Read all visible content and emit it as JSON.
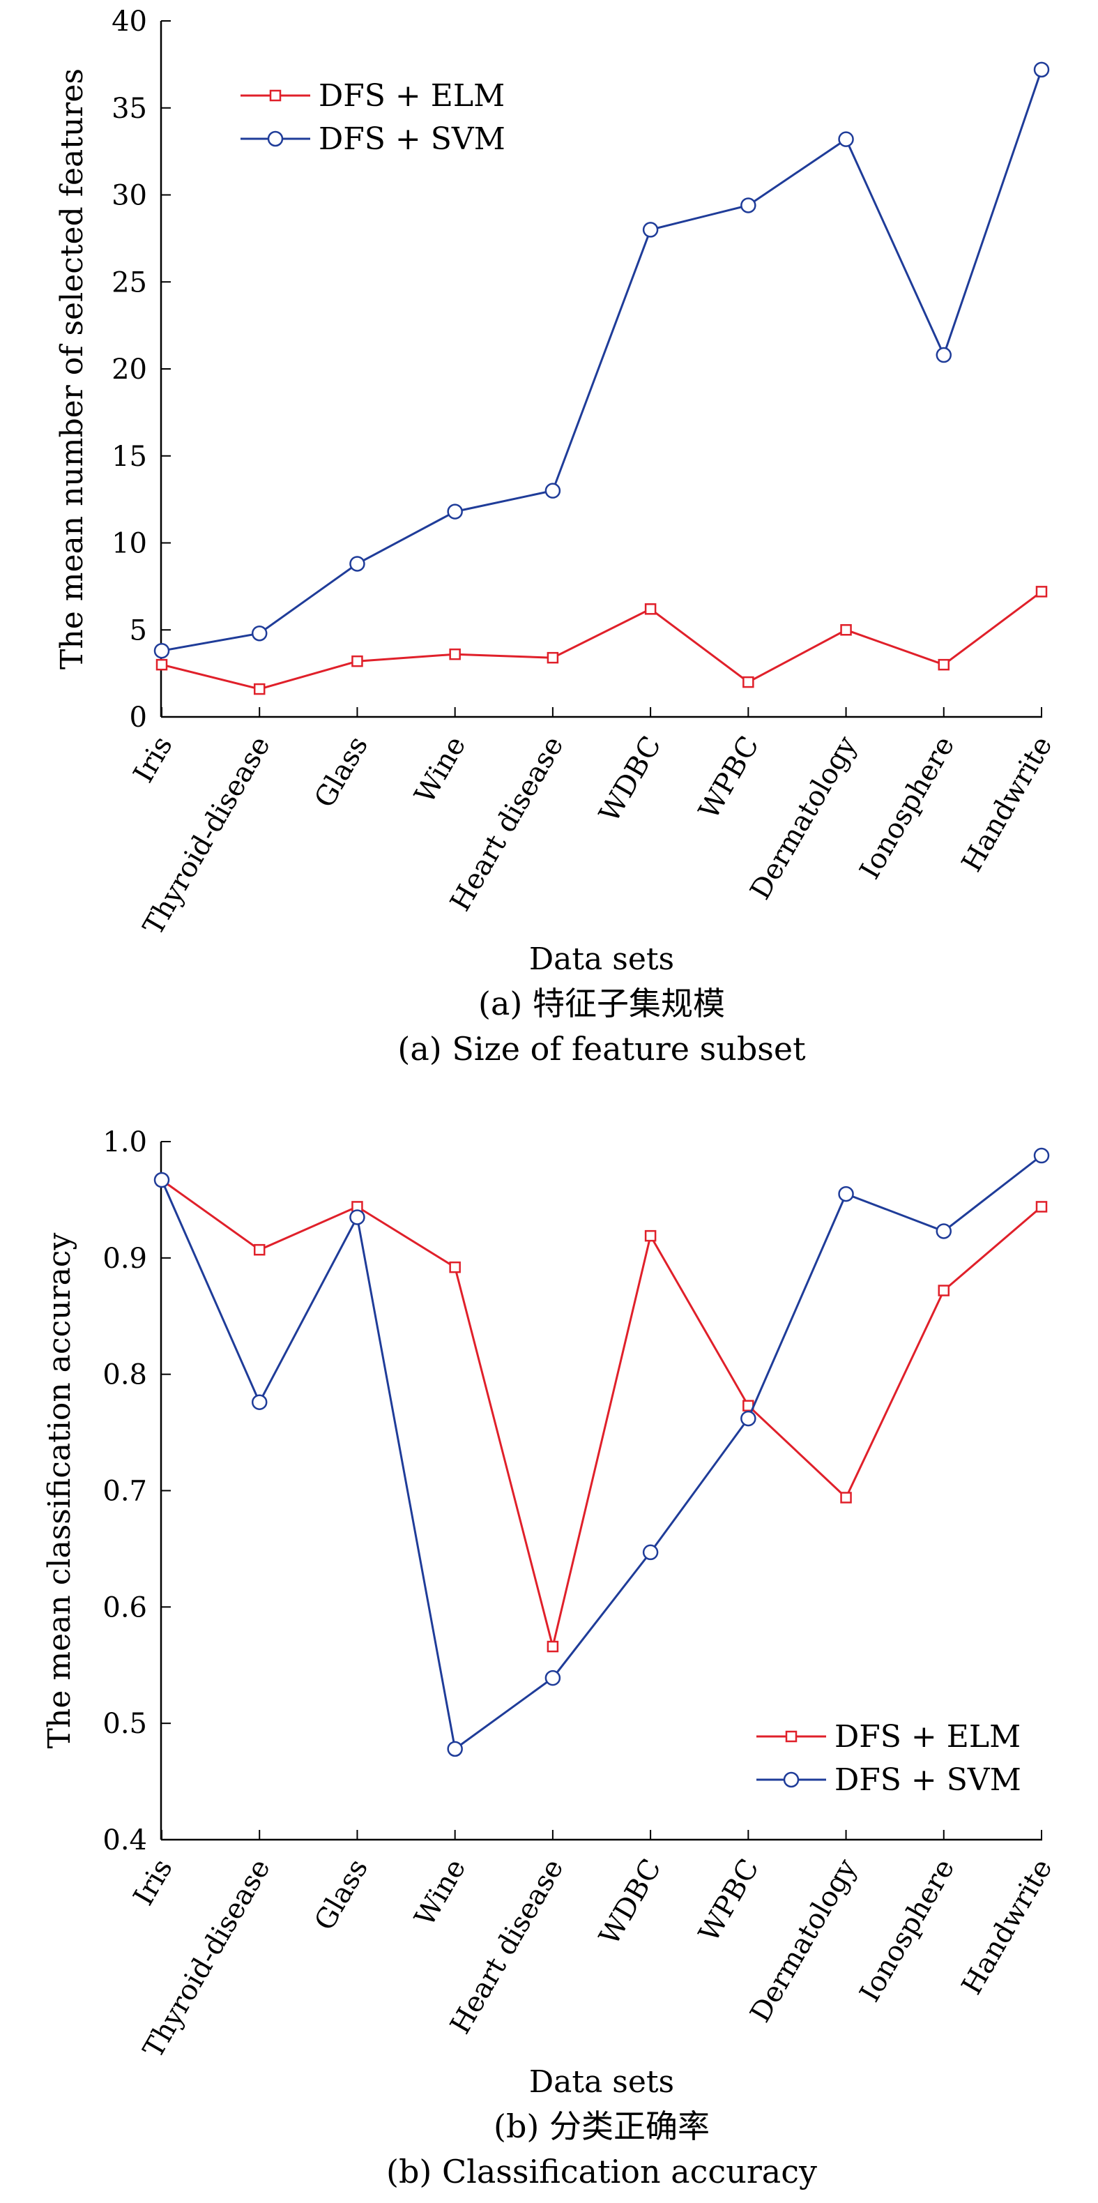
{
  "chart_data": [
    {
      "type": "line",
      "categories": [
        "Iris",
        "Thyroid-disease",
        "Glass",
        "Wine",
        "Heart disease",
        "WDBC",
        "WPBC",
        "Dermatology",
        "Ionosphere",
        "Handwrite"
      ],
      "series": [
        {
          "name": "DFS + ELM",
          "values": [
            3.0,
            1.6,
            3.2,
            3.6,
            3.4,
            6.2,
            2.0,
            5.0,
            3.0,
            7.2
          ],
          "color": "#e0202a",
          "marker": "square"
        },
        {
          "name": "DFS + SVM",
          "values": [
            3.8,
            4.8,
            8.8,
            11.8,
            13.0,
            28.0,
            29.4,
            33.2,
            20.8,
            37.2
          ],
          "color": "#1f3c99",
          "marker": "circle"
        }
      ],
      "ylim": [
        0,
        40
      ],
      "yticks": [
        "0",
        "5",
        "10",
        "15",
        "20",
        "25",
        "30",
        "35",
        "40"
      ],
      "xlabel": "Data sets",
      "ylabel": "The mean number of selected features",
      "caption_cn": "(a) 特征子集规模",
      "caption_en": "(a) Size of feature subset",
      "legend_position": "top-left"
    },
    {
      "type": "line",
      "categories": [
        "Iris",
        "Thyroid-disease",
        "Glass",
        "Wine",
        "Heart disease",
        "WDBC",
        "WPBC",
        "Dermatology",
        "Ionosphere",
        "Handwrite"
      ],
      "series": [
        {
          "name": "DFS + ELM",
          "values": [
            0.967,
            0.907,
            0.944,
            0.892,
            0.566,
            0.919,
            0.773,
            0.694,
            0.872,
            0.944
          ],
          "color": "#e0202a",
          "marker": "square"
        },
        {
          "name": "DFS + SVM",
          "values": [
            0.967,
            0.776,
            0.935,
            0.478,
            0.539,
            0.647,
            0.762,
            0.955,
            0.923,
            0.988
          ],
          "color": "#1f3c99",
          "marker": "circle"
        }
      ],
      "ylim": [
        0.4,
        1.0
      ],
      "yticks": [
        "0.4",
        "0.5",
        "0.6",
        "0.7",
        "0.8",
        "0.9",
        "1.0"
      ],
      "xlabel": "Data sets",
      "ylabel": "The mean classification accuracy",
      "caption_cn": "(b) 分类正确率",
      "caption_en": "(b) Classification accuracy",
      "legend_position": "bottom-right"
    }
  ]
}
